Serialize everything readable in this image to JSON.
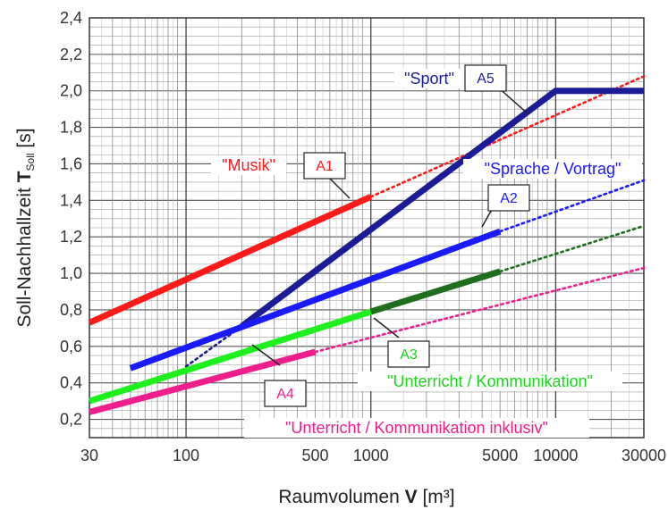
{
  "chart_data": {
    "type": "line",
    "xscale": "log",
    "xlim": [
      30,
      30000
    ],
    "ylim": [
      0.1,
      2.4
    ],
    "xticks": [
      30,
      100,
      500,
      1000,
      5000,
      10000,
      30000
    ],
    "xtick_labels": [
      "30",
      "100",
      "500",
      "1000",
      "5000",
      "10000",
      "30000"
    ],
    "yticks": [
      0.2,
      0.4,
      0.6,
      0.8,
      1.0,
      1.2,
      1.4,
      1.6,
      1.8,
      2.0,
      2.2,
      2.4
    ],
    "ytick_labels": [
      "0,2",
      "0,4",
      "0,6",
      "0,8",
      "1,0",
      "1,2",
      "1,4",
      "1,6",
      "1,8",
      "2,0",
      "2,2",
      "2,4"
    ],
    "xlabel": {
      "text": "Raumvolumen ",
      "bold": "V",
      "unit": " [m³]"
    },
    "ylabel": {
      "text": "Soll-Nachhallzeit ",
      "bold": "T",
      "sub": "Soll",
      "unit": " [s]"
    },
    "grid": true,
    "series": [
      {
        "name": "\"Musik\"",
        "group": "A1",
        "color": "#ff1a1a",
        "solid": [
          [
            30,
            0.73
          ],
          [
            1000,
            1.42
          ]
        ],
        "dotted": [
          [
            1000,
            1.42
          ],
          [
            30000,
            2.08
          ]
        ]
      },
      {
        "name": "\"Sport\"",
        "group": "A5",
        "color": "#1c1c96",
        "solid": [
          [
            200,
            0.71
          ],
          [
            10000,
            2.0
          ],
          [
            30000,
            2.0
          ]
        ],
        "dotted": [
          [
            100,
            0.49
          ],
          [
            200,
            0.71
          ]
        ]
      },
      {
        "name": "\"Sprache / Vortrag\"",
        "group": "A2",
        "color": "#1a1aff",
        "solid": [
          [
            50,
            0.48
          ],
          [
            5000,
            1.23
          ]
        ],
        "dotted": [
          [
            5000,
            1.23
          ],
          [
            30000,
            1.51
          ]
        ]
      },
      {
        "name": "\"Unterricht / Kommunikation\"",
        "group": "A3",
        "color": "#1ef01e",
        "color2": "#1e6e1e",
        "solid": [
          [
            30,
            0.3
          ],
          [
            1000,
            0.79
          ]
        ],
        "solid2": [
          [
            1000,
            0.79
          ],
          [
            5000,
            1.01
          ]
        ],
        "dotted": [
          [
            5000,
            1.01
          ],
          [
            30000,
            1.26
          ]
        ]
      },
      {
        "name": "\"Unterricht / Kommunikation inklusiv\"",
        "group": "A4",
        "color": "#ee1f8c",
        "solid": [
          [
            30,
            0.24
          ],
          [
            500,
            0.57
          ]
        ],
        "dotted": [
          [
            500,
            0.57
          ],
          [
            30000,
            1.03
          ]
        ]
      }
    ]
  },
  "labels": {
    "musik": "\"Musik\"",
    "sport": "\"Sport\"",
    "sprache": "\"Sprache / Vortrag\"",
    "unterricht": "\"Unterricht / Kommunikation\"",
    "inklusiv": "\"Unterricht / Kommunikation inklusiv\""
  },
  "boxes": {
    "a1": "A1",
    "a2": "A2",
    "a3": "A3",
    "a4": "A4",
    "a5": "A5"
  },
  "colors": {
    "musik": "#ff1a1a",
    "sport": "#1c1c96",
    "sprache": "#1a1aff",
    "unterricht": "#19d419",
    "inklusiv": "#ee1f8c"
  }
}
